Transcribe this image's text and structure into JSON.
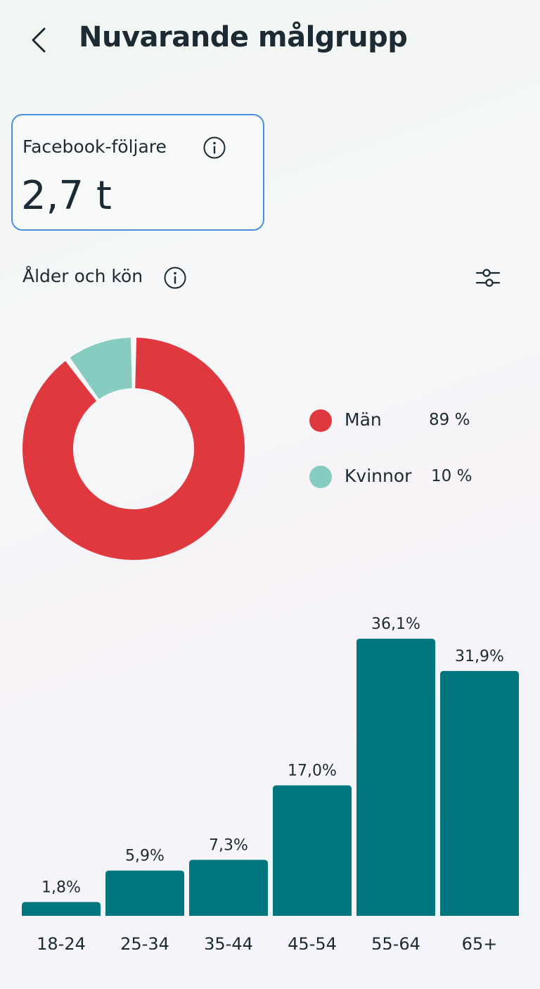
{
  "header": {
    "title": "Nuvarande målgrupp"
  },
  "metric": {
    "label": "Facebook-följare",
    "value": "2,7 t"
  },
  "section": {
    "title": "Ålder och kön"
  },
  "gender": {
    "legend": [
      {
        "label": "Män",
        "value": "89 %",
        "percent": 89,
        "color": "#df383e"
      },
      {
        "label": "Kvinnor",
        "value": "10 %",
        "percent": 10,
        "color": "#86ccc0"
      }
    ]
  },
  "chart_data": {
    "type": "bar",
    "categories": [
      "18-24",
      "25-34",
      "35-44",
      "45-54",
      "55-64",
      "65+"
    ],
    "values": [
      1.8,
      5.9,
      7.3,
      17.0,
      36.1,
      31.9
    ],
    "value_labels": [
      "1,8%",
      "5,9%",
      "7,3%",
      "17,0%",
      "36,1%",
      "31,9%"
    ],
    "bar_color": "#00777e",
    "title": "",
    "xlabel": "",
    "ylabel": "",
    "ylim": [
      0,
      36.1
    ],
    "grid": false
  },
  "colors": {
    "accent": "#4a8fe0",
    "text": "#1c2b33"
  },
  "icons": {
    "back": "chevron-left-icon",
    "info": "info-icon",
    "filter": "sliders-icon"
  }
}
